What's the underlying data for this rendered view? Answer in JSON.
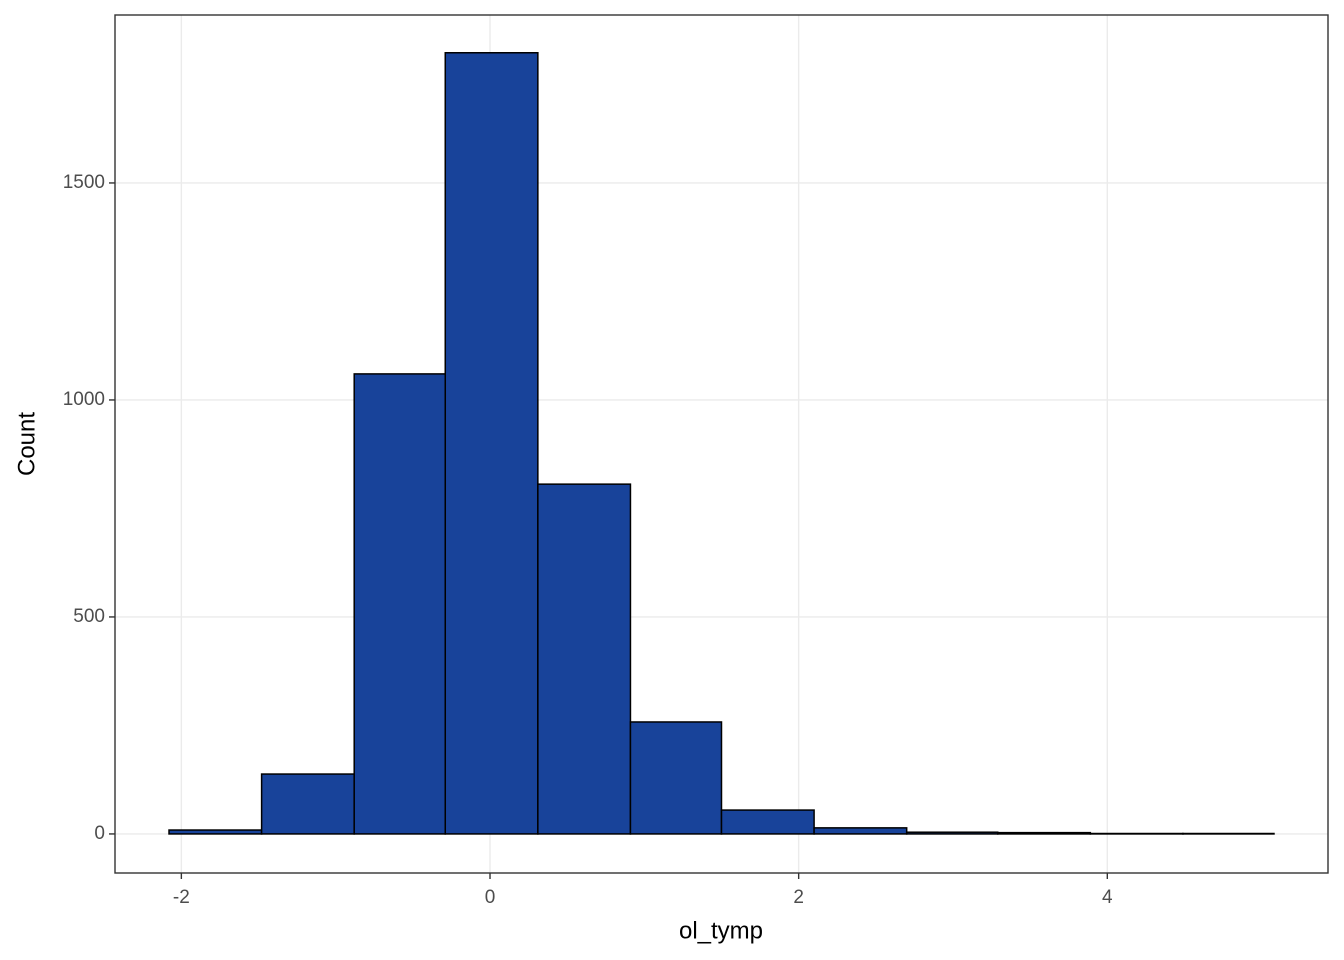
{
  "chart_data": {
    "type": "histogram",
    "x_label": "ol_tymp",
    "y_label": "Count",
    "bins": [
      -2.08,
      -1.48,
      -0.88,
      -0.29,
      0.31,
      0.91,
      1.5,
      2.1,
      2.7,
      3.29,
      3.89,
      4.49,
      5.08
    ],
    "counts": [
      9,
      138,
      1060,
      1800,
      806,
      258,
      55,
      14,
      4,
      3,
      1,
      1
    ],
    "color": "#18439a",
    "xlim": [
      -2.43,
      5.43
    ],
    "xticks": [
      -2,
      0,
      2,
      4
    ],
    "ylim": [
      -90,
      1887
    ],
    "yticks": [
      0,
      500,
      1000,
      1500
    ],
    "grid": true
  }
}
